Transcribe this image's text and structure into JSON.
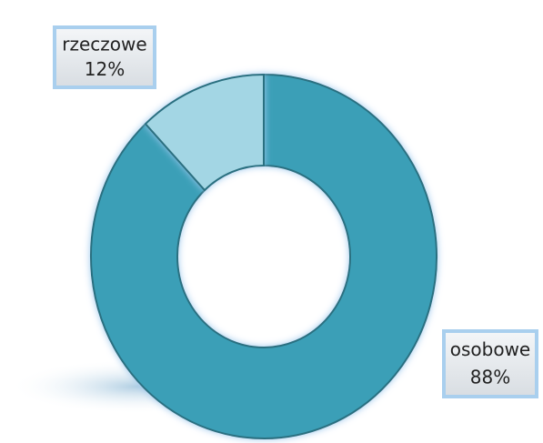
{
  "chart_data": {
    "type": "donut",
    "categories": [
      "osobowe",
      "rzeczowe"
    ],
    "values": [
      88,
      12
    ],
    "value_labels": [
      "88%",
      "12%"
    ],
    "colors": [
      "#3a9fb7",
      "#a3d6e4"
    ]
  }
}
